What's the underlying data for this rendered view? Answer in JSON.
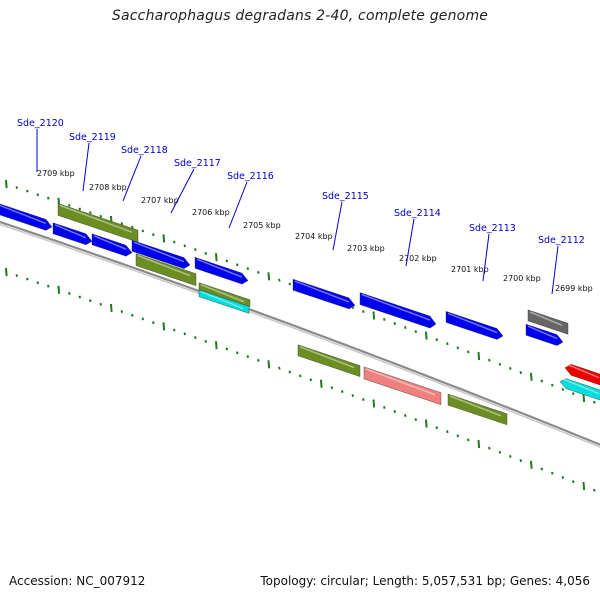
{
  "title": "Saccharophagus degradans 2-40, complete genome",
  "accession_text": "Accession: NC_007912",
  "summary_text": "Topology: circular; Length: 5,057,531 bp; Genes: 4,056",
  "colors": {
    "backbone": "#8a8a8a",
    "ticks": "#1f7a1f",
    "gene_label": "#0000cc",
    "blue": "#0000ee",
    "olive": "#6b8e23",
    "cyan": "#00dddd",
    "pink": "#f08080",
    "gray": "#666666",
    "red": "#ee0000"
  },
  "scale_labels": [
    "2709 kbp",
    "2708 kbp",
    "2707 kbp",
    "2706 kbp",
    "2705 kbp",
    "2704 kbp",
    "2703 kbp",
    "2702 kbp",
    "2701 kbp",
    "2700 kbp",
    "2699 kbp"
  ],
  "gene_labels": [
    "Sde_2120",
    "Sde_2119",
    "Sde_2118",
    "Sde_2117",
    "Sde_2116",
    "Sde_2115",
    "Sde_2114",
    "Sde_2113",
    "Sde_2112"
  ]
}
